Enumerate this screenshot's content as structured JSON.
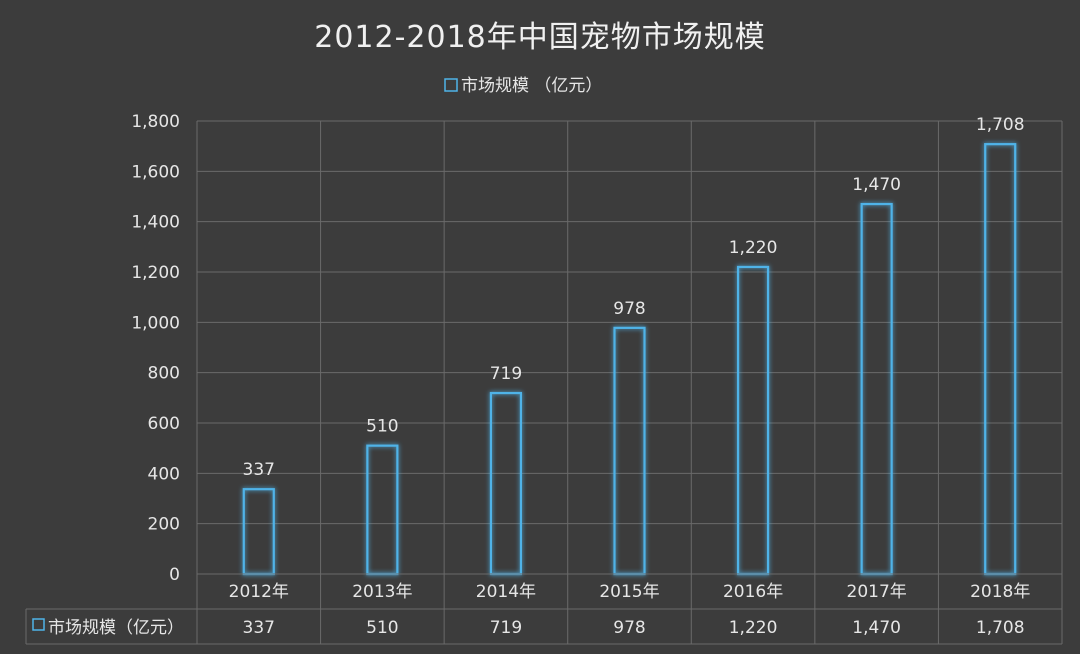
{
  "chart_data": {
    "type": "bar",
    "title": "2012-2018年中国宠物市场规模",
    "categories": [
      "2012年",
      "2013年",
      "2014年",
      "2015年",
      "2016年",
      "2017年",
      "2018年"
    ],
    "series": [
      {
        "name": "市场规模（亿元）",
        "values": [
          337,
          510,
          719,
          978,
          1220,
          1470,
          1708
        ],
        "value_labels": [
          "337",
          "510",
          "719",
          "978",
          "1,220",
          "1,470",
          "1,708"
        ]
      }
    ],
    "y_ticks": [
      "0",
      "200",
      "400",
      "600",
      "800",
      "1,000",
      "1,200",
      "1,400",
      "1,600",
      "1,800"
    ],
    "ylim": [
      0,
      1800
    ],
    "legend_label": "市场规模 （亿元）",
    "legend_position": "top",
    "grid": true,
    "data_table": true,
    "colors": {
      "background": "#3c3c3c",
      "bar_stroke": "#4fb3e8",
      "bar_glow": "#2a8fd0",
      "text": "#e6e6e6",
      "grid": "#6a6a6a"
    }
  }
}
